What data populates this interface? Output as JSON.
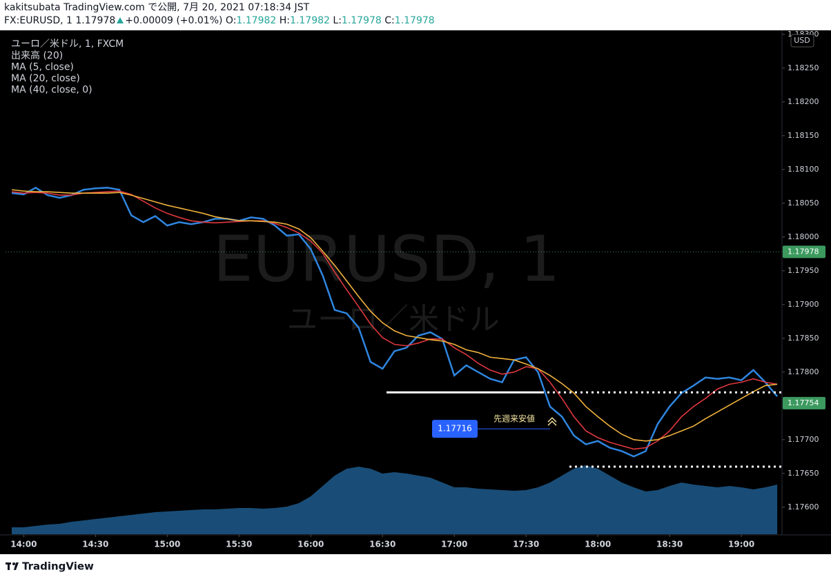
{
  "header": {
    "line1": "kakitsubata TradingView.com で公開, 7月 20, 2021 07:18:34 JST",
    "symbol": "FX:EURUSD, 1",
    "price": 1.17978,
    "change": "+0.00009 (+0.01%)",
    "o_label": "O:",
    "open": 1.17982,
    "h_label": "H:",
    "high": 1.17982,
    "l_label": "L:",
    "low": 1.17978,
    "c_label": "C:",
    "close": 1.17978
  },
  "chart_data": {
    "type": "line",
    "symbol_label": "ユーロ／米ドル, 1, FXCM",
    "watermark": "EURUSD, 1",
    "watermark_subtitle": "ユーロ／米ドル",
    "currency": "USD",
    "categories": [
      null,
      "14:00",
      null,
      null,
      null,
      null,
      null,
      "14:30",
      null,
      null,
      null,
      null,
      null,
      "15:00",
      null,
      null,
      null,
      null,
      null,
      "15:30",
      null,
      null,
      null,
      null,
      null,
      "16:00",
      null,
      null,
      null,
      null,
      null,
      "16:30",
      null,
      null,
      null,
      null,
      null,
      "17:00",
      null,
      null,
      null,
      null,
      null,
      "17:30",
      null,
      null,
      null,
      null,
      null,
      "18:00",
      null,
      null,
      null,
      null,
      null,
      "18:30",
      null,
      null,
      null,
      null,
      null,
      "19:00",
      null,
      null,
      null
    ],
    "series": [
      {
        "name": "出来高 (20)",
        "color": "#1d5a8c",
        "axis": "volume",
        "values": [
          10,
          10,
          12,
          14,
          15,
          18,
          20,
          22,
          24,
          26,
          28,
          30,
          32,
          33,
          34,
          35,
          36,
          36,
          37,
          38,
          38,
          37,
          38,
          40,
          45,
          55,
          70,
          85,
          95,
          98,
          95,
          88,
          90,
          88,
          85,
          82,
          75,
          68,
          68,
          66,
          65,
          64,
          63,
          64,
          68,
          75,
          85,
          95,
          100,
          95,
          85,
          75,
          68,
          62,
          64,
          70,
          75,
          72,
          70,
          68,
          70,
          68,
          65,
          68,
          72
        ]
      },
      {
        "name": "MA (5, close)",
        "color": "#2f86e0",
        "values": [
          1.18065,
          1.18063,
          1.18073,
          1.18062,
          1.18058,
          1.18062,
          1.1807,
          1.18072,
          1.18073,
          1.1807,
          1.18032,
          1.18022,
          1.18031,
          1.18017,
          1.18022,
          1.18019,
          1.18022,
          1.18027,
          1.18027,
          1.18024,
          1.18029,
          1.18027,
          1.18017,
          1.18002,
          1.18004,
          1.17982,
          1.17943,
          1.17892,
          1.17887,
          1.17866,
          1.17815,
          1.17805,
          1.17831,
          1.17836,
          1.17854,
          1.17859,
          1.17849,
          1.17795,
          1.1781,
          1.178,
          1.1779,
          1.17785,
          1.17818,
          1.17822,
          1.178,
          1.17749,
          1.17734,
          1.17706,
          1.17693,
          1.17698,
          1.17688,
          1.17683,
          1.17675,
          1.17683,
          1.17723,
          1.17749,
          1.17769,
          1.1778,
          1.17792,
          1.1779,
          1.17792,
          1.17788,
          1.17803,
          1.17785,
          1.17764
        ]
      },
      {
        "name": "MA (20, close)",
        "color": "#e0383e",
        "values": [
          1.18067,
          1.18065,
          1.18066,
          1.18065,
          1.18062,
          1.18062,
          1.18065,
          1.18066,
          1.18067,
          1.18068,
          1.18063,
          1.18053,
          1.18043,
          1.18035,
          1.18029,
          1.18024,
          1.18022,
          1.18021,
          1.18022,
          1.18023,
          1.18024,
          1.18024,
          1.1802,
          1.18014,
          1.18006,
          1.17994,
          1.17976,
          1.17948,
          1.17922,
          1.17897,
          1.17871,
          1.17851,
          1.17841,
          1.17839,
          1.17843,
          1.17849,
          1.17849,
          1.17836,
          1.17826,
          1.17813,
          1.17803,
          1.17797,
          1.178,
          1.17808,
          1.17805,
          1.17785,
          1.17761,
          1.17734,
          1.17713,
          1.17703,
          1.17696,
          1.17691,
          1.17686,
          1.17688,
          1.17698,
          1.17713,
          1.17734,
          1.17749,
          1.17761,
          1.17775,
          1.17782,
          1.17785,
          1.1779,
          1.17785,
          1.17782
        ]
      },
      {
        "name": "MA (40, close, 0)",
        "color": "#f2b33d",
        "values": [
          1.1807,
          1.18068,
          1.18067,
          1.18067,
          1.18066,
          1.18065,
          1.18065,
          1.18065,
          1.18065,
          1.18066,
          1.18062,
          1.18057,
          1.18052,
          1.18047,
          1.18043,
          1.18039,
          1.18035,
          1.1803,
          1.18027,
          1.18024,
          1.18024,
          1.18023,
          1.18022,
          1.18019,
          1.18012,
          1.17999,
          1.17979,
          1.17958,
          1.17935,
          1.17912,
          1.1789,
          1.17873,
          1.17861,
          1.17854,
          1.17851,
          1.17848,
          1.17846,
          1.17841,
          1.17833,
          1.17829,
          1.17822,
          1.1782,
          1.17818,
          1.17812,
          1.17805,
          1.17795,
          1.17783,
          1.17769,
          1.17749,
          1.17734,
          1.1772,
          1.17708,
          1.177,
          1.17698,
          1.177,
          1.17706,
          1.17713,
          1.1772,
          1.17731,
          1.17741,
          1.17751,
          1.17761,
          1.17771,
          1.1778,
          1.17782
        ]
      }
    ],
    "volume_lim": [
      0,
      130
    ],
    "ylim": [
      1.1756,
      1.18306
    ],
    "yticks": [
      {
        "value": 1.176,
        "label": "1.17600"
      },
      {
        "value": 1.1765,
        "label": "1.17650"
      },
      {
        "value": 1.177,
        "label": "1.17700"
      },
      {
        "value": 1.1775,
        "label": "1.17750"
      },
      {
        "value": 1.178,
        "label": "1.17800"
      },
      {
        "value": 1.1785,
        "label": "1.17850"
      },
      {
        "value": 1.179,
        "label": "1.17900"
      },
      {
        "value": 1.1795,
        "label": "1.17950"
      },
      {
        "value": 1.18,
        "label": "1.18000"
      },
      {
        "value": 1.1805,
        "label": "1.18050"
      },
      {
        "value": 1.181,
        "label": "1.18100"
      },
      {
        "value": 1.1815,
        "label": "1.18150"
      },
      {
        "value": 1.182,
        "label": "1.18200"
      },
      {
        "value": 1.1825,
        "label": "1.18250"
      },
      {
        "value": 1.183,
        "label": "1.18300"
      }
    ],
    "price_labels": [
      {
        "value": 1.17978,
        "color": "#3c9a5f"
      },
      {
        "value": 1.17754,
        "color": "#3c9a5f"
      }
    ],
    "levels": [
      {
        "value": 1.1777,
        "style": "solid"
      },
      {
        "value": 1.1777,
        "style": "dotted"
      },
      {
        "value": 1.1766,
        "style": "dotted"
      },
      {
        "value": 1.17978,
        "style": "price"
      }
    ],
    "annotation": {
      "price": 1.17716,
      "text": "先週来安値"
    }
  },
  "footer": {
    "brand": "TradingView"
  }
}
